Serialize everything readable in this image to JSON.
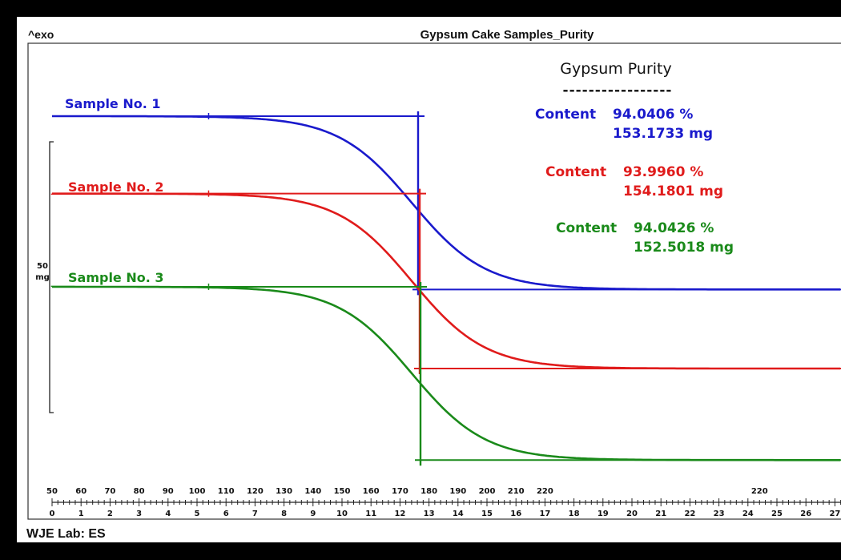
{
  "header": {
    "exo_label": "^exo",
    "title": "Gypsum Cake Samples_Purity"
  },
  "footer": {
    "lab_label": "WJE Lab: ES"
  },
  "colors": {
    "sample1": "#1a1acc",
    "sample2": "#e01b1b",
    "sample3": "#1a8a1a",
    "text": "#111111"
  },
  "chart_data": {
    "type": "line",
    "title": "Gypsum Cake Samples_Purity",
    "scale_bar": {
      "label_value": "50",
      "label_unit": "mg",
      "value": 50
    },
    "x_axis_bottom": {
      "ticks": [
        0,
        1,
        2,
        3,
        4,
        5,
        6,
        7,
        8,
        9,
        10,
        11,
        12,
        13,
        14,
        15,
        16,
        17,
        18,
        19,
        20,
        21,
        22,
        23,
        24,
        25,
        26,
        27
      ],
      "range": [
        0,
        27
      ]
    },
    "x_axis_top": {
      "ticks": [
        "50",
        "60",
        "70",
        "80",
        "90",
        "100",
        "110",
        "120",
        "130",
        "140",
        "150",
        "160",
        "170",
        "180",
        "190",
        "200",
        "210",
        "220"
      ],
      "extra_tick": "220"
    },
    "annotation_title": "Gypsum Purity",
    "annotation_rule": "-----------------",
    "series": [
      {
        "name": "Sample No. 1",
        "color": "#1a1acc",
        "start_level": 0,
        "end_level": -32.0,
        "step_midpoint": 12.6,
        "content_label": "Content",
        "content_percent": "94.0406 %",
        "content_mass": "153.1733 mg"
      },
      {
        "name": "Sample No. 2",
        "color": "#e01b1b",
        "start_level": -14.3,
        "end_level": -46.6,
        "step_midpoint": 12.6,
        "content_label": "Content",
        "content_percent": "93.9960 %",
        "content_mass": "154.1801 mg"
      },
      {
        "name": "Sample No. 3",
        "color": "#1a8a1a",
        "start_level": -31.5,
        "end_level": -63.5,
        "step_midpoint": 12.6,
        "content_label": "Content",
        "content_percent": "94.0426 %",
        "content_mass": "152.5018 mg"
      }
    ]
  }
}
